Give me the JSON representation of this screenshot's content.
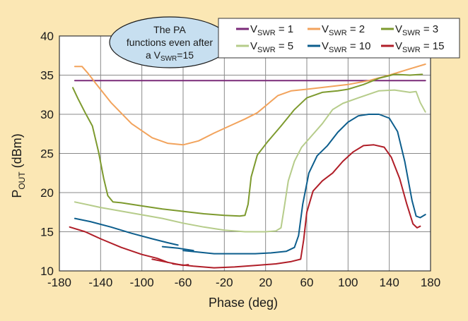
{
  "chart_data": {
    "type": "line",
    "xlabel": "Phase (deg)",
    "ylabel_main": "P",
    "ylabel_sub": "OUT",
    "ylabel_unit": " (dBm)",
    "xlim": [
      -180,
      180
    ],
    "ylim": [
      10,
      40
    ],
    "x_ticks": [
      -180,
      -140,
      -100,
      -60,
      -20,
      20,
      60,
      100,
      140,
      180
    ],
    "y_ticks": [
      10,
      15,
      20,
      25,
      30,
      35,
      40
    ],
    "x_tick_labels": [
      "-180",
      "-140",
      "-100",
      "-60",
      "-20",
      "20",
      "60",
      "100",
      "140",
      "180"
    ],
    "y_tick_labels": [
      "10",
      "15",
      "20",
      "25",
      "30",
      "35",
      "40"
    ],
    "grid": true,
    "legend_position": "top-right",
    "annotation": {
      "lines": [
        "The PA",
        "functions even after"
      ],
      "last_line_prefix": "a V",
      "last_line_sub": "SWR",
      "last_line_suffix": "=15"
    },
    "series": [
      {
        "name": "VSWR = 1",
        "label_main": "V",
        "label_sub": "SWR",
        "label_suffix": " = 1",
        "color": "#7a2a78",
        "segments": [
          [
            [
              -165,
              34.3
            ],
            [
              175,
              34.3
            ]
          ]
        ]
      },
      {
        "name": "VSWR = 2",
        "label_main": "V",
        "label_sub": "SWR",
        "label_suffix": " = 2",
        "color": "#f2a35c",
        "segments": [
          [
            [
              -165,
              36.1
            ],
            [
              -158,
              36.1
            ],
            [
              -152,
              35.2
            ],
            [
              -145,
              34.0
            ],
            [
              -130,
              31.5
            ],
            [
              -110,
              28.8
            ],
            [
              -90,
              27.0
            ],
            [
              -75,
              26.3
            ],
            [
              -60,
              26.1
            ],
            [
              -45,
              26.6
            ],
            [
              -30,
              27.6
            ],
            [
              -15,
              28.5
            ],
            [
              0,
              29.4
            ],
            [
              12,
              30.2
            ],
            [
              22,
              31.3
            ],
            [
              32,
              32.4
            ],
            [
              45,
              33.0
            ],
            [
              60,
              33.2
            ],
            [
              80,
              33.5
            ],
            [
              100,
              33.8
            ],
            [
              120,
              34.3
            ],
            [
              140,
              35.0
            ],
            [
              160,
              35.8
            ],
            [
              175,
              36.4
            ]
          ]
        ]
      },
      {
        "name": "VSWR = 3",
        "label_main": "V",
        "label_sub": "SWR",
        "label_suffix": " = 3",
        "color": "#7d9a2e",
        "segments": [
          [
            [
              -167,
              33.4
            ],
            [
              -162,
              32.0
            ],
            [
              -155,
              30.2
            ],
            [
              -148,
              28.5
            ],
            [
              -142,
              25.2
            ],
            [
              -137,
              21.8
            ],
            [
              -133,
              19.6
            ],
            [
              -128,
              18.8
            ],
            [
              -120,
              18.7
            ],
            [
              -100,
              18.3
            ],
            [
              -80,
              17.9
            ],
            [
              -60,
              17.6
            ],
            [
              -40,
              17.3
            ],
            [
              -20,
              17.1
            ],
            [
              -5,
              17.0
            ],
            [
              0,
              17.1
            ],
            [
              3,
              18.5
            ],
            [
              6,
              22.0
            ],
            [
              12,
              24.8
            ],
            [
              22,
              26.5
            ],
            [
              35,
              28.5
            ],
            [
              48,
              30.6
            ],
            [
              60,
              32.1
            ],
            [
              75,
              32.8
            ],
            [
              90,
              33.0
            ],
            [
              100,
              33.2
            ],
            [
              115,
              33.8
            ],
            [
              130,
              34.6
            ],
            [
              145,
              35.1
            ],
            [
              160,
              35.0
            ],
            [
              172,
              35.1
            ]
          ]
        ]
      },
      {
        "name": "VSWR = 5",
        "label_main": "V",
        "label_sub": "SWR",
        "label_suffix": " = 5",
        "color": "#b6cc8a",
        "segments": [
          [
            [
              -165,
              18.8
            ],
            [
              -140,
              18.1
            ],
            [
              -110,
              17.4
            ],
            [
              -80,
              16.7
            ],
            [
              -60,
              16.1
            ],
            [
              -40,
              15.6
            ],
            [
              -20,
              15.2
            ],
            [
              0,
              15.0
            ],
            [
              20,
              15.0
            ],
            [
              30,
              15.1
            ],
            [
              35,
              15.5
            ],
            [
              38,
              18.0
            ],
            [
              42,
              21.5
            ],
            [
              48,
              24.0
            ],
            [
              55,
              25.8
            ],
            [
              65,
              27.3
            ],
            [
              75,
              28.8
            ],
            [
              85,
              30.6
            ],
            [
              95,
              31.4
            ],
            [
              110,
              32.1
            ],
            [
              130,
              33.0
            ],
            [
              145,
              33.1
            ],
            [
              160,
              32.8
            ],
            [
              166,
              32.9
            ],
            [
              170,
              31.5
            ],
            [
              175,
              30.3
            ]
          ]
        ]
      },
      {
        "name": "VSWR = 10",
        "label_main": "V",
        "label_sub": "SWR",
        "label_suffix": " = 10",
        "color": "#0d5e8d",
        "segments": [
          [
            [
              -165,
              16.7
            ],
            [
              -150,
              16.3
            ],
            [
              -130,
              15.6
            ],
            [
              -110,
              14.8
            ],
            [
              -90,
              14.1
            ],
            [
              -75,
              13.6
            ],
            [
              -65,
              13.3
            ]
          ],
          [
            [
              -80,
              13.1
            ],
            [
              -65,
              12.9
            ],
            [
              -50,
              12.6
            ]
          ],
          [
            [
              -60,
              12.6
            ],
            [
              -45,
              12.4
            ],
            [
              -30,
              12.2
            ],
            [
              -10,
              12.2
            ],
            [
              10,
              12.2
            ],
            [
              25,
              12.3
            ],
            [
              40,
              12.5
            ],
            [
              48,
              13.0
            ],
            [
              52,
              14.5
            ],
            [
              56,
              18.5
            ],
            [
              62,
              22.5
            ],
            [
              70,
              24.7
            ],
            [
              80,
              26.0
            ],
            [
              90,
              27.7
            ],
            [
              100,
              29.0
            ],
            [
              110,
              29.8
            ],
            [
              120,
              30.0
            ],
            [
              130,
              30.0
            ],
            [
              140,
              29.5
            ],
            [
              148,
              27.8
            ],
            [
              155,
              24.0
            ],
            [
              162,
              19.0
            ],
            [
              166,
              17.0
            ],
            [
              170,
              16.8
            ],
            [
              175,
              17.2
            ]
          ]
        ]
      },
      {
        "name": "VSWR = 15",
        "label_main": "V",
        "label_sub": "SWR",
        "label_suffix": " = 15",
        "color": "#b01e28",
        "segments": [
          [
            [
              -170,
              15.6
            ],
            [
              -155,
              15.0
            ],
            [
              -140,
              14.1
            ],
            [
              -120,
              13.0
            ],
            [
              -100,
              12.1
            ],
            [
              -85,
              11.6
            ],
            [
              -75,
              11.1
            ]
          ],
          [
            [
              -90,
              11.5
            ],
            [
              -75,
              11.1
            ],
            [
              -60,
              10.7
            ],
            [
              -55,
              10.8
            ]
          ],
          [
            [
              -70,
              10.9
            ],
            [
              -50,
              10.6
            ],
            [
              -30,
              10.4
            ],
            [
              -10,
              10.5
            ],
            [
              10,
              10.7
            ],
            [
              30,
              10.9
            ],
            [
              45,
              11.2
            ],
            [
              54,
              11.5
            ],
            [
              57,
              14.0
            ],
            [
              60,
              17.5
            ],
            [
              66,
              20.2
            ],
            [
              75,
              21.5
            ],
            [
              85,
              22.5
            ],
            [
              95,
              24.0
            ],
            [
              105,
              25.2
            ],
            [
              115,
              26.0
            ],
            [
              125,
              26.1
            ],
            [
              135,
              25.8
            ],
            [
              142,
              24.5
            ],
            [
              150,
              21.8
            ],
            [
              157,
              18.5
            ],
            [
              163,
              16.0
            ],
            [
              167,
              15.5
            ],
            [
              170,
              15.7
            ]
          ]
        ]
      }
    ]
  }
}
